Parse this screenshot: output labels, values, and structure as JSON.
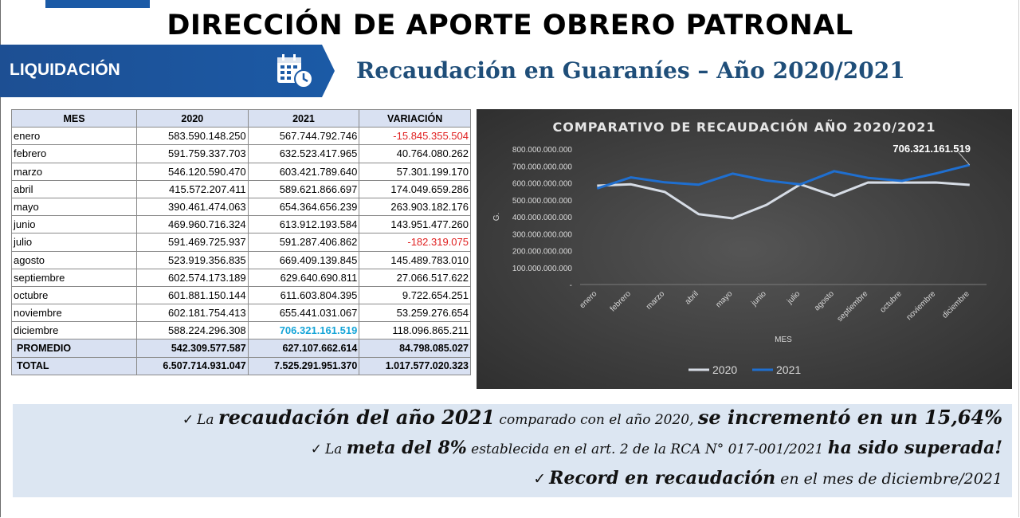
{
  "header": {
    "title": "DIRECCIÓN DE APORTE OBRERO PATRONAL",
    "banner_label": "LIQUIDACIÓN",
    "subtitle": "Recaudación en Guaraníes – Año 2020/2021",
    "icon": "calendar-clock-icon",
    "colors": {
      "banner": "#1b5aa6",
      "subtitle": "#1f4e79"
    }
  },
  "table": {
    "headers": [
      "MES",
      "2020",
      "2021",
      "VARIACIÓN"
    ],
    "rows": [
      [
        "enero",
        "583.590.148.250",
        "567.744.792.746",
        "-15.845.355.504"
      ],
      [
        "febrero",
        "591.759.337.703",
        "632.523.417.965",
        "40.764.080.262"
      ],
      [
        "marzo",
        "546.120.590.470",
        "603.421.789.640",
        "57.301.199.170"
      ],
      [
        "abril",
        "415.572.207.411",
        "589.621.866.697",
        "174.049.659.286"
      ],
      [
        "mayo",
        "390.461.474.063",
        "654.364.656.239",
        "263.903.182.176"
      ],
      [
        "junio",
        "469.960.716.324",
        "613.912.193.584",
        "143.951.477.260"
      ],
      [
        "julio",
        "591.469.725.937",
        "591.287.406.862",
        "-182.319.075"
      ],
      [
        "agosto",
        "523.919.356.835",
        "669.409.139.845",
        "145.489.783.010"
      ],
      [
        "septiembre",
        "602.574.173.189",
        "629.640.690.811",
        "27.066.517.622"
      ],
      [
        "octubre",
        "601.881.150.144",
        "611.603.804.395",
        "9.722.654.251"
      ],
      [
        "noviembre",
        "602.181.754.413",
        "655.441.031.067",
        "53.259.276.654"
      ],
      [
        "diciembre",
        "588.224.296.308",
        "706.321.161.519",
        "118.096.865.211"
      ]
    ],
    "promedio": [
      "PROMEDIO",
      "542.309.577.587",
      "627.107.662.614",
      "84.798.085.027"
    ],
    "total": [
      "TOTAL",
      "6.507.714.931.047",
      "7.525.291.951.370",
      "1.017.577.020.323"
    ],
    "colors": {
      "negative": "#e02020",
      "highlight": "#16a5d8",
      "header_bg": "#d9e1f2"
    }
  },
  "chart_data": {
    "type": "line",
    "title": "COMPARATIVO DE RECAUDACIÓN AÑO 2020/2021",
    "xlabel": "MES",
    "ylabel": "G.",
    "categories": [
      "enero",
      "febrero",
      "marzo",
      "abril",
      "mayo",
      "junio",
      "julio",
      "agosto",
      "septiembre",
      "octubre",
      "noviembre",
      "diciembre"
    ],
    "series": [
      {
        "name": "2020",
        "color": "#d6dce5",
        "values": [
          583590148250,
          591759337703,
          546120590470,
          415572207411,
          390461474063,
          469960716324,
          591469725937,
          523919356835,
          602574173189,
          601881150144,
          602181754413,
          588224296308
        ]
      },
      {
        "name": "2021",
        "color": "#1f6fd0",
        "values": [
          567744792746,
          632523417965,
          603421789640,
          589621866697,
          654364656239,
          613912193584,
          591287406862,
          669409139845,
          629640690811,
          611603804395,
          655441031067,
          706321161519
        ]
      }
    ],
    "yticks": [
      "800.000.000.000",
      "700.000.000.000",
      "600.000.000.000",
      "500.000.000.000",
      "400.000.000.000",
      "300.000.000.000",
      "200.000.000.000",
      "100.000.000.000",
      "-"
    ],
    "ylim": [
      0,
      800000000000
    ],
    "annotation": "706.321.161.519",
    "grid": false,
    "legend": "bottom"
  },
  "summary": {
    "l1_pre": "La ",
    "l1_b1": "recaudación del año 2021",
    "l1_mid": " comparado con el año 2020, ",
    "l1_b2": "se incrementó en un 15,64%",
    "l2_pre": "La ",
    "l2_b1": "meta del 8%",
    "l2_mid": " establecida en el art. 2 de la RCA N° 017-001/2021 ",
    "l2_b2": "ha sido superada!",
    "l3_b1": "Record en recaudación",
    "l3_mid": " en el mes de diciembre/2021",
    "check": "✓"
  }
}
